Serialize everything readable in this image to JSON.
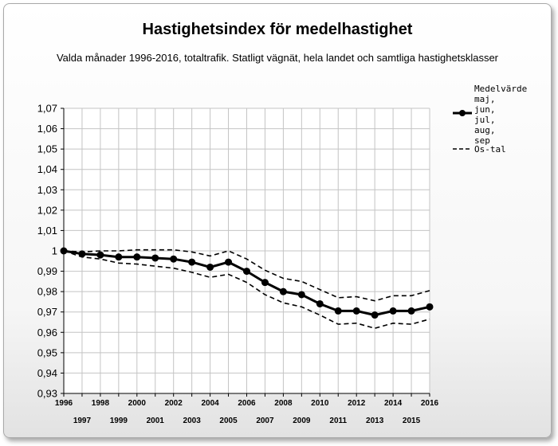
{
  "chart_data": {
    "type": "line",
    "title": "Hastighetsindex för medelhastighet",
    "subtitle": "Valda månader 1996-2016, totaltrafik. Statligt vägnät, hela landet och samtliga hastighetsklasser",
    "xlabel": "",
    "ylabel": "",
    "x": [
      1996,
      1997,
      1998,
      1999,
      2000,
      2001,
      2002,
      2003,
      2004,
      2005,
      2006,
      2007,
      2008,
      2009,
      2010,
      2011,
      2012,
      2013,
      2014,
      2015,
      2016
    ],
    "x_tick_labels": [
      "1996",
      "1997",
      "1998",
      "1999",
      "2000",
      "2001",
      "2002",
      "2003",
      "2004",
      "2005",
      "2006",
      "2007",
      "2008",
      "2009",
      "2010",
      "2011",
      "2012",
      "2013",
      "2014",
      "2015",
      "2016"
    ],
    "ylim": [
      0.93,
      1.07
    ],
    "y_ticks": [
      0.93,
      0.94,
      0.95,
      0.96,
      0.97,
      0.98,
      0.99,
      1.0,
      1.01,
      1.02,
      1.03,
      1.04,
      1.05,
      1.06,
      1.07
    ],
    "y_tick_labels": [
      "0,93",
      "0,94",
      "0,95",
      "0,96",
      "0,97",
      "0,98",
      "0,99",
      "1",
      "1,01",
      "1,02",
      "1,03",
      "1,04",
      "1,05",
      "1,06",
      "1,07"
    ],
    "grid": true,
    "legend_position": "right",
    "series": [
      {
        "name": "Medelvärde maj, jun, jul, aug, sep",
        "legend_lines": [
          "Medelvärde",
          "maj,",
          "jun,",
          "jul,",
          "aug,",
          "sep"
        ],
        "style": "solid-markers",
        "color": "#000000",
        "values": [
          1.0,
          0.9985,
          0.998,
          0.997,
          0.997,
          0.9965,
          0.996,
          0.9945,
          0.992,
          0.9945,
          0.99,
          0.9845,
          0.98,
          0.9785,
          0.974,
          0.9705,
          0.9705,
          0.9685,
          0.9705,
          0.9705,
          0.9725
        ]
      },
      {
        "name": "Os-tal",
        "legend_lines": [
          "Os-tal"
        ],
        "style": "dashed",
        "color": "#000000",
        "values": [
          1.0,
          0.9995,
          1.0,
          1.0,
          1.0005,
          1.0005,
          1.0005,
          0.9995,
          0.9975,
          1.0,
          0.996,
          0.9905,
          0.9865,
          0.985,
          0.981,
          0.977,
          0.9775,
          0.9755,
          0.978,
          0.978,
          0.9805
        ]
      },
      {
        "name": "Os-tal (undre)",
        "legend_lines": [],
        "style": "dashed",
        "color": "#000000",
        "values": [
          1.0,
          0.997,
          0.996,
          0.994,
          0.9935,
          0.9925,
          0.9915,
          0.9895,
          0.987,
          0.9885,
          0.9845,
          0.9785,
          0.9745,
          0.9725,
          0.9685,
          0.964,
          0.9645,
          0.962,
          0.9645,
          0.964,
          0.9665
        ]
      }
    ]
  }
}
